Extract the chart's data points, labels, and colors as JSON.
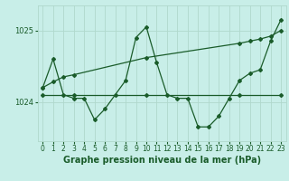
{
  "bg_color": "#c8eee8",
  "grid_color": "#b0d8cc",
  "line_color": "#1a5c2a",
  "marker_color": "#1a5c2a",
  "xlabel": "Graphe pression niveau de la mer (hPa)",
  "xlabel_fontsize": 7,
  "tick_fontsize": 6,
  "ylim": [
    1023.45,
    1025.35
  ],
  "yticks": [
    1024,
    1025
  ],
  "xlim": [
    -0.5,
    23.5
  ],
  "xticks": [
    0,
    1,
    2,
    3,
    4,
    5,
    6,
    7,
    8,
    9,
    10,
    11,
    12,
    13,
    14,
    15,
    16,
    17,
    18,
    19,
    20,
    21,
    22,
    23
  ],
  "series1_x": [
    0,
    1,
    2,
    3,
    4,
    5,
    6,
    7,
    8,
    9,
    10,
    11,
    12,
    13,
    14,
    15,
    16,
    17,
    18,
    19,
    20,
    21,
    22,
    23
  ],
  "series1_y": [
    1024.2,
    1024.6,
    1024.1,
    1024.05,
    1024.05,
    1023.75,
    1023.9,
    1024.1,
    1024.3,
    1024.9,
    1025.05,
    1024.55,
    1024.1,
    1024.05,
    1024.05,
    1023.65,
    1023.65,
    1023.8,
    1024.05,
    1024.3,
    1024.4,
    1024.45,
    1024.85,
    1025.15
  ],
  "series2_x": [
    0,
    3,
    10,
    19,
    23
  ],
  "series2_y": [
    1024.1,
    1024.1,
    1024.1,
    1024.1,
    1024.1
  ],
  "series3_x": [
    0,
    1,
    2,
    3,
    10,
    19,
    20,
    21,
    22,
    23
  ],
  "series3_y": [
    1024.2,
    1024.28,
    1024.35,
    1024.38,
    1024.62,
    1024.82,
    1024.85,
    1024.88,
    1024.92,
    1025.0
  ]
}
